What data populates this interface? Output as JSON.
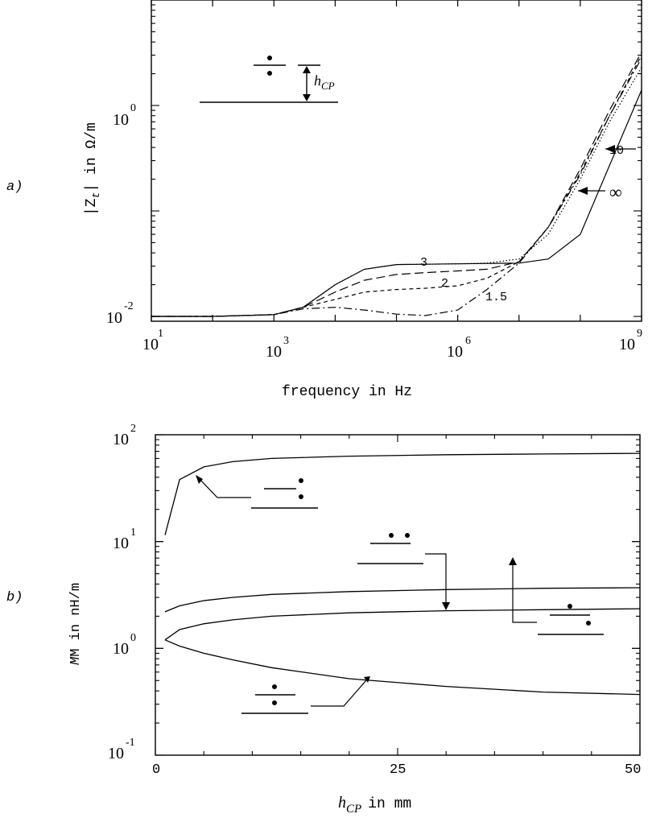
{
  "panel_a": {
    "panel_label": "a)",
    "ylabel_left": "|Z",
    "ylabel_sub": "t",
    "ylabel_right": "| in Ω/m",
    "xlabel": "frequency in Hz",
    "y_ticks": [
      {
        "value": -2,
        "base": "10",
        "exp": "-2"
      },
      {
        "value": 0,
        "base": "10",
        "exp": "0"
      }
    ],
    "x_ticks": [
      {
        "value": 1,
        "base": "10",
        "exp": "1"
      },
      {
        "value": 3,
        "base": "10",
        "exp": "3"
      },
      {
        "value": 6,
        "base": "10",
        "exp": "6"
      },
      {
        "value": 9,
        "base": "10",
        "exp": "9"
      }
    ],
    "inset_label": "h",
    "inset_sub": "CP",
    "curve_labels": [
      "10",
      "∞",
      "3",
      "2",
      "1.5"
    ]
  },
  "panel_b": {
    "panel_label": "b)",
    "ylabel": "M in nH/m",
    "xlabel": "h",
    "xlabel_sub": "CP",
    "xlabel_unit": "in mm",
    "y_ticks": [
      {
        "value": -1,
        "base": "10",
        "exp": "-1"
      },
      {
        "value": 0,
        "base": "10",
        "exp": "0"
      },
      {
        "value": 1,
        "base": "10",
        "exp": "1"
      },
      {
        "value": 2,
        "base": "10",
        "exp": "2"
      }
    ],
    "x_ticks": [
      {
        "value": 0,
        "label": "0"
      },
      {
        "value": 25,
        "label": "25"
      },
      {
        "value": 50,
        "label": "50"
      }
    ]
  },
  "chart_data": [
    {
      "type": "line",
      "x_scale": "log",
      "y_scale": "log",
      "xlabel": "frequency in Hz",
      "ylabel": "|Zt| in Ω/m",
      "xlim": [
        10,
        1000000000
      ],
      "ylim": [
        0.009,
        10
      ],
      "series": [
        {
          "name": "∞",
          "style": "solid",
          "x": [
            10,
            100,
            1000,
            3000,
            10000,
            30000,
            100000,
            1000000,
            10000000,
            30000000,
            100000000,
            300000000,
            1000000000
          ],
          "y": [
            0.01,
            0.01,
            0.0104,
            0.0122,
            0.02,
            0.028,
            0.031,
            0.0315,
            0.032,
            0.035,
            0.06,
            0.27,
            1.4
          ]
        },
        {
          "name": "10",
          "style": "dotted",
          "x": [
            10,
            100,
            1000,
            3000,
            10000,
            30000,
            100000,
            1000000,
            3000000,
            10000000,
            30000000,
            100000000,
            300000000,
            1000000000
          ],
          "y": [
            0.01,
            0.01,
            0.0104,
            0.0122,
            0.02,
            0.028,
            0.031,
            0.0315,
            0.032,
            0.035,
            0.06,
            0.2,
            0.7,
            2.3
          ]
        },
        {
          "name": "3",
          "style": "long-dash",
          "x": [
            10,
            100,
            1000,
            3000,
            10000,
            30000,
            100000,
            300000,
            1000000,
            3000000,
            10000000,
            30000000,
            100000000,
            300000000,
            1000000000
          ],
          "y": [
            0.01,
            0.01,
            0.0104,
            0.0122,
            0.017,
            0.022,
            0.025,
            0.026,
            0.027,
            0.028,
            0.033,
            0.07,
            0.25,
            0.9,
            3.2
          ]
        },
        {
          "name": "2",
          "style": "short-dash",
          "x": [
            10,
            100,
            1000,
            3000,
            10000,
            30000,
            100000,
            300000,
            1000000,
            3000000,
            10000000,
            30000000,
            100000000,
            300000000,
            1000000000
          ],
          "y": [
            0.01,
            0.01,
            0.0104,
            0.0122,
            0.0145,
            0.017,
            0.018,
            0.0185,
            0.0195,
            0.023,
            0.033,
            0.07,
            0.23,
            0.8,
            3.0
          ]
        },
        {
          "name": "1.5",
          "style": "dash-dot",
          "x": [
            10,
            100,
            1000,
            3000,
            10000,
            30000,
            100000,
            300000,
            1000000,
            3000000,
            10000000,
            30000000,
            100000000,
            300000000,
            1000000000
          ],
          "y": [
            0.01,
            0.01,
            0.0104,
            0.0118,
            0.0122,
            0.0115,
            0.0105,
            0.0102,
            0.0115,
            0.018,
            0.032,
            0.07,
            0.22,
            0.8,
            2.8
          ]
        }
      ]
    },
    {
      "type": "line",
      "y_scale": "log",
      "xlabel": "hCP in mm",
      "ylabel": "M in nH/m",
      "xlim": [
        0,
        50
      ],
      "ylim": [
        0.1,
        100
      ],
      "series": [
        {
          "style": "solid",
          "x": [
            1,
            2.5,
            5,
            8,
            12,
            20,
            30,
            40,
            50
          ],
          "y": [
            11.5,
            38,
            50,
            56,
            60,
            63,
            65,
            66,
            67
          ]
        },
        {
          "style": "solid",
          "x": [
            1,
            2.5,
            5,
            8,
            12,
            20,
            30,
            40,
            50
          ],
          "y": [
            2.2,
            2.5,
            2.8,
            3.0,
            3.2,
            3.4,
            3.55,
            3.65,
            3.7
          ]
        },
        {
          "style": "solid",
          "x": [
            1,
            2.5,
            5,
            8,
            12,
            20,
            30,
            40,
            50
          ],
          "y": [
            1.2,
            1.5,
            1.7,
            1.85,
            2.0,
            2.15,
            2.25,
            2.3,
            2.35
          ]
        },
        {
          "style": "solid",
          "x": [
            1,
            2.5,
            5,
            8,
            12,
            20,
            30,
            40,
            50
          ],
          "y": [
            1.2,
            1.05,
            0.9,
            0.78,
            0.66,
            0.52,
            0.44,
            0.39,
            0.37
          ]
        }
      ]
    }
  ]
}
